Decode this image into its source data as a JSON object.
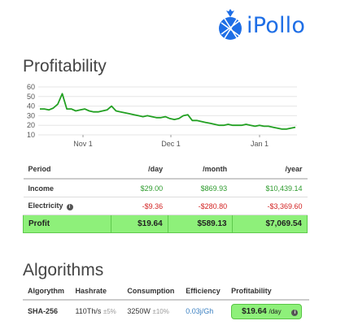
{
  "brand": {
    "name": "iPollo"
  },
  "profitability": {
    "title": "Profitability",
    "columns": [
      "Period",
      "/day",
      "/month",
      "/year"
    ],
    "rows": [
      {
        "label": "Income",
        "day": "$29.00",
        "month": "$869.93",
        "year": "$10,439.14"
      },
      {
        "label": "Electricity",
        "day": "-$9.36",
        "month": "-$280.80",
        "year": "-$3,369.60"
      },
      {
        "label": "Profit",
        "day": "$19.64",
        "month": "$589.13",
        "year": "$7,069.54"
      }
    ]
  },
  "chart_data": {
    "type": "line",
    "title": "",
    "xlabel": "",
    "ylabel": "",
    "x_ticks": [
      "Nov 1",
      "Dec 1",
      "Jan 1"
    ],
    "y_ticks": [
      10,
      20,
      30,
      40,
      50,
      60
    ],
    "ylim": [
      10,
      60
    ],
    "grid": true,
    "color": "#22a022",
    "series": [
      {
        "values": [
          37,
          37,
          36,
          38,
          42,
          53,
          37,
          37,
          35,
          36,
          37,
          35,
          34,
          34,
          35,
          36,
          40,
          35,
          34,
          33,
          32,
          31,
          30,
          29,
          30,
          29,
          28,
          28,
          29,
          27,
          26,
          27,
          30,
          31,
          25,
          25,
          24,
          23,
          22,
          21,
          20,
          20,
          21,
          20,
          20,
          20,
          21,
          20,
          19,
          20,
          19,
          19,
          18,
          17,
          16,
          16,
          17,
          18
        ]
      }
    ]
  },
  "algorithms": {
    "title": "Algorithms",
    "columns": [
      "Algorythm",
      "Hashrate",
      "Consumption",
      "Efficiency",
      "Profitability"
    ],
    "row": {
      "algorithm": "SHA-256",
      "hashrate": "110Th/s",
      "hashrate_tol": "±5%",
      "consumption": "3250W",
      "consumption_tol": "±10%",
      "efficiency": "0.03j/Gh",
      "profit": "$19.64",
      "per": "/day"
    }
  },
  "icons": {
    "info": "info-icon",
    "logo": "pineapple-logo-icon"
  },
  "colors": {
    "accent": "#1e6ee6",
    "positive": "#2d9b2d",
    "negative": "#d22222",
    "highlight": "#8ef07a"
  }
}
